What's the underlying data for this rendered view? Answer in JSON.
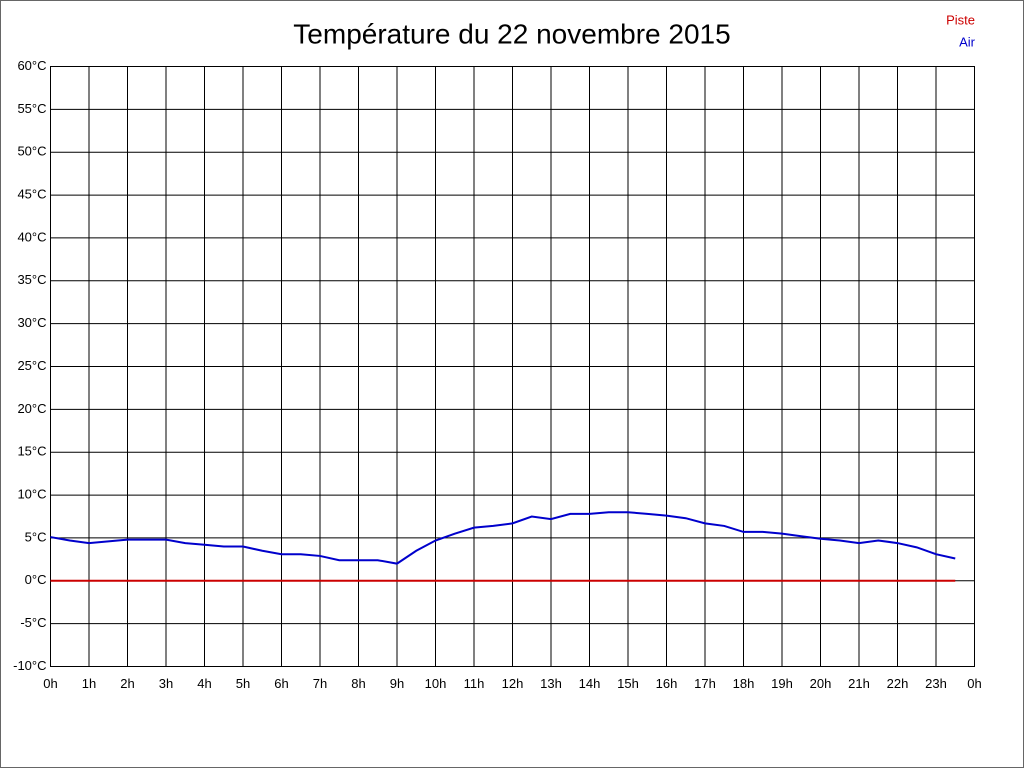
{
  "chart_data": {
    "type": "line",
    "title": "Température du 22 novembre 2015",
    "x": [
      0,
      0.5,
      1,
      1.5,
      2,
      2.5,
      3,
      3.5,
      4,
      4.5,
      5,
      5.5,
      6,
      6.5,
      7,
      7.5,
      8,
      8.5,
      9,
      9.5,
      10,
      10.5,
      11,
      11.5,
      12,
      12.5,
      13,
      13.5,
      14,
      14.5,
      15,
      15.5,
      16,
      16.5,
      17,
      17.5,
      18,
      18.5,
      19,
      19.5,
      20,
      20.5,
      21,
      21.5,
      22,
      22.5,
      23,
      23.5
    ],
    "series": [
      {
        "name": "Piste",
        "color": "#cc0000",
        "values": [
          0,
          0,
          0,
          0,
          0,
          0,
          0,
          0,
          0,
          0,
          0,
          0,
          0,
          0,
          0,
          0,
          0,
          0,
          0,
          0,
          0,
          0,
          0,
          0,
          0,
          0,
          0,
          0,
          0,
          0,
          0,
          0,
          0,
          0,
          0,
          0,
          0,
          0,
          0,
          0,
          0,
          0,
          0,
          0,
          0,
          0,
          0,
          0
        ]
      },
      {
        "name": "Air",
        "color": "#0000cc",
        "values": [
          5.1,
          4.7,
          4.4,
          4.6,
          4.8,
          4.8,
          4.8,
          4.4,
          4.2,
          4.0,
          4.0,
          3.5,
          3.1,
          3.1,
          2.9,
          2.4,
          2.4,
          2.4,
          2.0,
          3.5,
          4.7,
          5.5,
          6.2,
          6.4,
          6.7,
          7.5,
          7.2,
          7.8,
          7.8,
          8.0,
          8.0,
          7.8,
          7.6,
          7.3,
          6.7,
          6.4,
          5.7,
          5.7,
          5.5,
          5.2,
          4.9,
          4.7,
          4.4,
          4.7,
          4.4,
          3.9,
          3.1,
          2.6
        ]
      }
    ],
    "xlim": [
      0,
      24
    ],
    "xticks": [
      {
        "value": 0,
        "label": "0h"
      },
      {
        "value": 1,
        "label": "1h"
      },
      {
        "value": 2,
        "label": "2h"
      },
      {
        "value": 3,
        "label": "3h"
      },
      {
        "value": 4,
        "label": "4h"
      },
      {
        "value": 5,
        "label": "5h"
      },
      {
        "value": 6,
        "label": "6h"
      },
      {
        "value": 7,
        "label": "7h"
      },
      {
        "value": 8,
        "label": "8h"
      },
      {
        "value": 9,
        "label": "9h"
      },
      {
        "value": 10,
        "label": "10h"
      },
      {
        "value": 11,
        "label": "11h"
      },
      {
        "value": 12,
        "label": "12h"
      },
      {
        "value": 13,
        "label": "13h"
      },
      {
        "value": 14,
        "label": "14h"
      },
      {
        "value": 15,
        "label": "15h"
      },
      {
        "value": 16,
        "label": "16h"
      },
      {
        "value": 17,
        "label": "17h"
      },
      {
        "value": 18,
        "label": "18h"
      },
      {
        "value": 19,
        "label": "19h"
      },
      {
        "value": 20,
        "label": "20h"
      },
      {
        "value": 21,
        "label": "21h"
      },
      {
        "value": 22,
        "label": "22h"
      },
      {
        "value": 23,
        "label": "23h"
      },
      {
        "value": 24,
        "label": "0h"
      }
    ],
    "ylim": [
      -10,
      60
    ],
    "yticks": [
      {
        "value": -10,
        "label": "-10°C"
      },
      {
        "value": -5,
        "label": "-5°C"
      },
      {
        "value": 0,
        "label": "0°C"
      },
      {
        "value": 5,
        "label": "5°C"
      },
      {
        "value": 10,
        "label": "10°C"
      },
      {
        "value": 15,
        "label": "15°C"
      },
      {
        "value": 20,
        "label": "20°C"
      },
      {
        "value": 25,
        "label": "25°C"
      },
      {
        "value": 30,
        "label": "30°C"
      },
      {
        "value": 35,
        "label": "35°C"
      },
      {
        "value": 40,
        "label": "40°C"
      },
      {
        "value": 45,
        "label": "45°C"
      },
      {
        "value": 50,
        "label": "50°C"
      },
      {
        "value": 55,
        "label": "55°C"
      },
      {
        "value": 60,
        "label": "60°C"
      }
    ],
    "grid": true,
    "legend": "top-right"
  }
}
